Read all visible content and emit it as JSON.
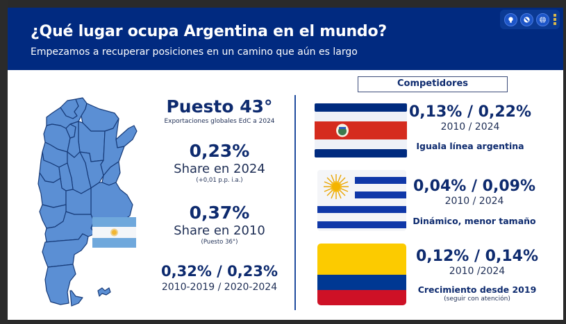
{
  "header": {
    "title": "¿Qué lugar ocupa Argentina en el mundo?",
    "subtitle": "Empezamos a recuperar posiciones en un camino que aún es largo",
    "toolbar": [
      "lightbulb-icon",
      "pen-icon",
      "globe-icon",
      "more-icon"
    ]
  },
  "colors": {
    "header_bg": "#012a80",
    "map_fill": "#5b8fd4",
    "map_stroke": "#163a78",
    "text_dark": "#0d2a6e",
    "argentina_light_blue": "#6fa8dc",
    "costa_rica_blue": "#002b7f",
    "costa_rica_red": "#ce1126",
    "uruguay_blue": "#1038a8",
    "uruguay_sun": "#f5b800",
    "colombia_yellow": "#fcd116",
    "colombia_blue": "#003893",
    "colombia_red": "#ce1126"
  },
  "argentina": {
    "rank_title": "Puesto 43°",
    "rank_caption": "Exportaciones globales EdC a 2024",
    "share_2024_value": "0,23%",
    "share_2024_label": "Share en 2024",
    "share_2024_note": "(+0,01 p.p. i.a.)",
    "share_2010_value": "0,37%",
    "share_2010_label": "Share en 2010",
    "share_2010_note": "(Puesto 36°)",
    "periods_value": "0,32% / 0,23%",
    "periods_label": "2010-2019 / 2020-2024"
  },
  "competitors": {
    "heading": "Competidores",
    "items": [
      {
        "country": "costa-rica",
        "value": "0,13% / 0,22%",
        "years": "2010 / 2024",
        "comment": "Iguala línea argentina",
        "note": null
      },
      {
        "country": "uruguay",
        "value": "0,04% / 0,09%",
        "years": "2010 / 2024",
        "comment": "Dinámico, menor tamaño",
        "note": null
      },
      {
        "country": "colombia",
        "value": "0,12% / 0,14%",
        "years": "2010 /2024",
        "comment": "Crecimiento desde 2019",
        "note": "(seguir con atención)"
      }
    ]
  }
}
